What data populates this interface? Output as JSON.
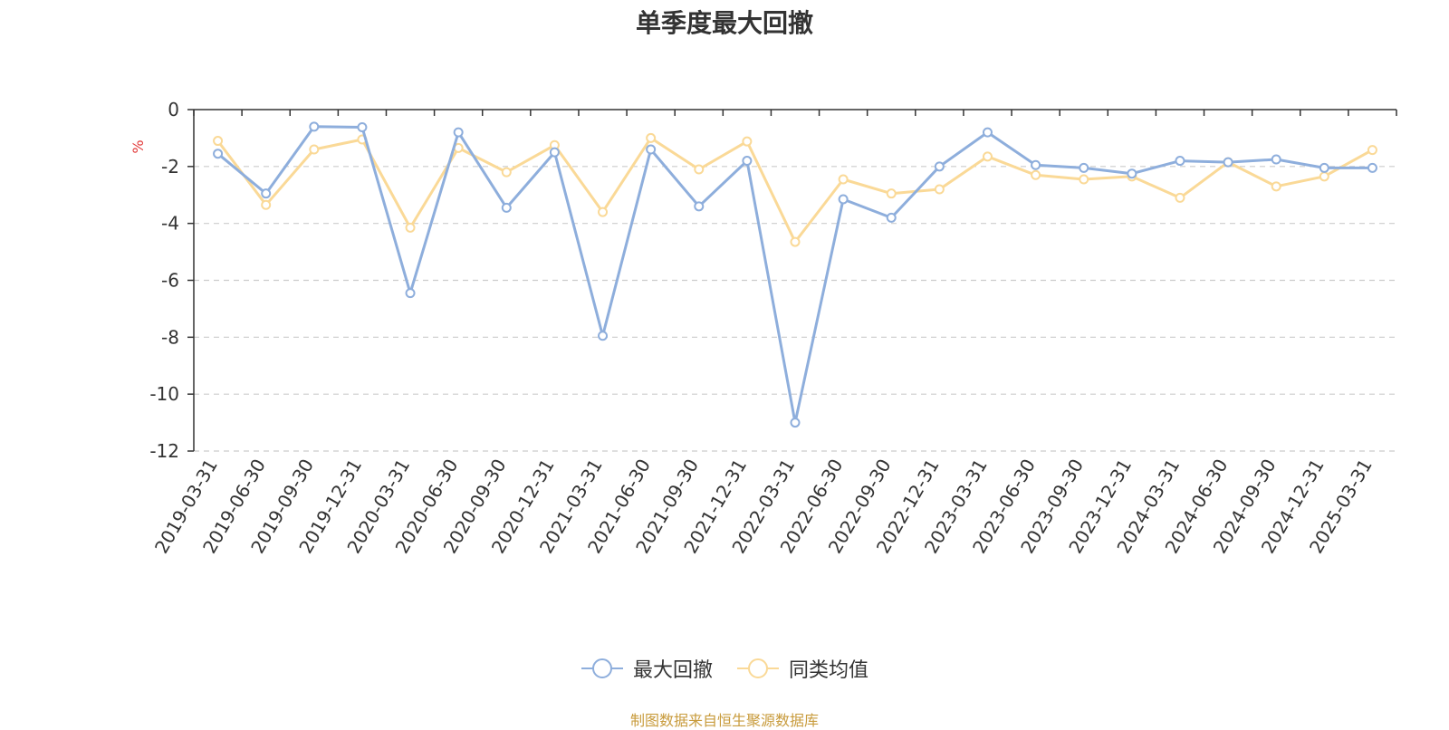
{
  "chart_data": {
    "type": "line",
    "title": "单季度最大回撤",
    "ylabel": "%",
    "xlabel": "",
    "ylim": [
      -12,
      0
    ],
    "yticks": [
      0,
      -2,
      -4,
      -6,
      -8,
      -10,
      -12
    ],
    "grid": true,
    "legend_position": "bottom-center",
    "categories": [
      "2019-03-31",
      "2019-06-30",
      "2019-09-30",
      "2019-12-31",
      "2020-03-31",
      "2020-06-30",
      "2020-09-30",
      "2020-12-31",
      "2021-03-31",
      "2021-06-30",
      "2021-09-30",
      "2021-12-31",
      "2022-03-31",
      "2022-06-30",
      "2022-09-30",
      "2022-12-31",
      "2023-03-31",
      "2023-06-30",
      "2023-09-30",
      "2023-12-31",
      "2024-03-31",
      "2024-06-30",
      "2024-09-30",
      "2024-12-31",
      "2025-03-31"
    ],
    "series": [
      {
        "name": "最大回撤",
        "color": "#8eaedc",
        "values": [
          -1.55,
          -2.95,
          -0.6,
          -0.62,
          -6.45,
          -0.8,
          -3.45,
          -1.5,
          -7.95,
          -1.4,
          -3.4,
          -1.8,
          -11.0,
          -3.15,
          -3.8,
          -2.0,
          -0.8,
          -1.95,
          -2.05,
          -2.25,
          -1.8,
          -1.85,
          -1.75,
          -2.05,
          -2.05
        ]
      },
      {
        "name": "同类均值",
        "color": "#fad997",
        "values": [
          -1.1,
          -3.35,
          -1.4,
          -1.05,
          -4.15,
          -1.35,
          -2.2,
          -1.25,
          -3.6,
          -1.0,
          -2.1,
          -1.12,
          -4.65,
          -2.45,
          -2.95,
          -2.8,
          -1.65,
          -2.3,
          -2.45,
          -2.35,
          -3.1,
          -1.85,
          -2.7,
          -2.35,
          -1.42
        ]
      }
    ]
  },
  "source_text": "制图数据来自恒生聚源数据库",
  "colors": {
    "axis": "#333333",
    "grid": "#cccccc",
    "tick_text": "#333333",
    "ylabel": "#e23b3b",
    "source": "#c89b3c"
  }
}
